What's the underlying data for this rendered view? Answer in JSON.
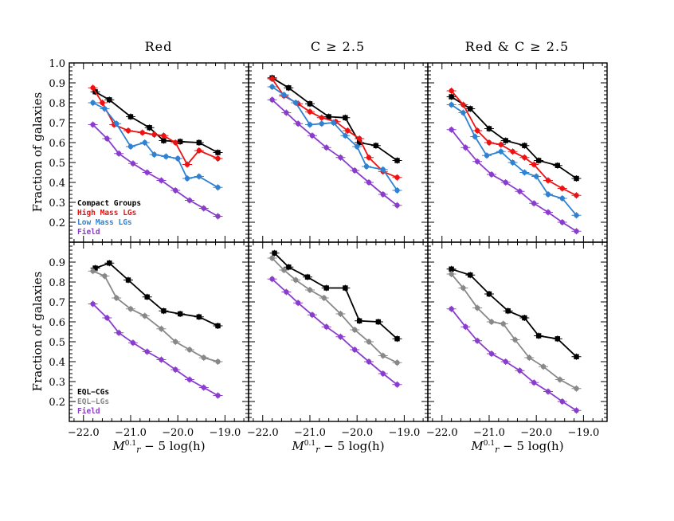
{
  "figure": {
    "column_titles": [
      "Red",
      "C ≥ 2.5",
      "Red & C ≥ 2.5"
    ],
    "ylabel": "Fraction of galaxies",
    "xlabel_parts": {
      "m": "M",
      "sup": "0.1",
      "sub": "r",
      "rest": " − 5 log(h)"
    }
  },
  "chart_data": [
    {
      "type": "line",
      "panel": "top-left",
      "title": "Red",
      "xlim": [
        -22.3,
        -18.5
      ],
      "ylim": [
        0.1,
        1.0
      ],
      "xticks": [
        "−22.0",
        "−21.0",
        "−20.0",
        "−19.0"
      ],
      "yticks": [
        "0.2",
        "0.3",
        "0.4",
        "0.5",
        "0.6",
        "0.7",
        "0.8",
        "0.9",
        "1.0"
      ],
      "ylabel": "Fraction of galaxies",
      "xlabel": "",
      "legend": {
        "placement": "bottom-left"
      },
      "series": [
        {
          "name": "Compact Groups",
          "color": "#000000",
          "x": [
            -21.75,
            -21.45,
            -21.0,
            -20.6,
            -20.3,
            -19.95,
            -19.55,
            -19.15
          ],
          "y": [
            0.855,
            0.815,
            0.73,
            0.675,
            0.61,
            0.605,
            0.6,
            0.55
          ]
        },
        {
          "name": "High Mass LGs",
          "color": "#ee1111",
          "x": [
            -21.8,
            -21.6,
            -21.35,
            -21.05,
            -20.75,
            -20.5,
            -20.3,
            -20.05,
            -19.8,
            -19.55,
            -19.15
          ],
          "y": [
            0.875,
            0.8,
            0.69,
            0.66,
            0.65,
            0.64,
            0.635,
            0.6,
            0.49,
            0.56,
            0.52
          ]
        },
        {
          "name": "Low Mass LGs",
          "color": "#2f82d2",
          "x": [
            -21.8,
            -21.55,
            -21.3,
            -21.0,
            -20.7,
            -20.5,
            -20.25,
            -20.0,
            -19.8,
            -19.55,
            -19.15
          ],
          "y": [
            0.8,
            0.77,
            0.695,
            0.58,
            0.6,
            0.54,
            0.53,
            0.52,
            0.42,
            0.43,
            0.375
          ]
        },
        {
          "name": "Field",
          "color": "#8a3ccc",
          "x": [
            -21.8,
            -21.5,
            -21.25,
            -20.95,
            -20.65,
            -20.35,
            -20.05,
            -19.75,
            -19.45,
            -19.15
          ],
          "y": [
            0.69,
            0.62,
            0.545,
            0.495,
            0.45,
            0.41,
            0.36,
            0.31,
            0.27,
            0.23
          ]
        }
      ]
    },
    {
      "type": "line",
      "panel": "top-middle",
      "title": "C ≥ 2.5",
      "xlim": [
        -22.3,
        -18.5
      ],
      "ylim": [
        0.1,
        1.0
      ],
      "xticks": [
        "−22.0",
        "−21.0",
        "−20.0",
        "−19.0"
      ],
      "yticks": [],
      "series": [
        {
          "name": "Compact Groups",
          "color": "#000000",
          "x": [
            -21.8,
            -21.45,
            -21.0,
            -20.6,
            -20.25,
            -19.95,
            -19.6,
            -19.15
          ],
          "y": [
            0.925,
            0.875,
            0.795,
            0.73,
            0.725,
            0.6,
            0.585,
            0.51
          ]
        },
        {
          "name": "High Mass LGs",
          "color": "#ee1111",
          "x": [
            -21.8,
            -21.55,
            -21.25,
            -21.0,
            -20.75,
            -20.45,
            -20.2,
            -19.95,
            -19.75,
            -19.45,
            -19.15
          ],
          "y": [
            0.92,
            0.835,
            0.795,
            0.755,
            0.725,
            0.705,
            0.66,
            0.62,
            0.525,
            0.455,
            0.425
          ]
        },
        {
          "name": "Low Mass LGs",
          "color": "#2f82d2",
          "x": [
            -21.8,
            -21.55,
            -21.3,
            -21.0,
            -20.75,
            -20.5,
            -20.25,
            -20.0,
            -19.8,
            -19.45,
            -19.15
          ],
          "y": [
            0.88,
            0.84,
            0.8,
            0.69,
            0.695,
            0.7,
            0.635,
            0.58,
            0.48,
            0.465,
            0.36
          ]
        },
        {
          "name": "Field",
          "color": "#8a3ccc",
          "x": [
            -21.8,
            -21.5,
            -21.25,
            -20.95,
            -20.65,
            -20.35,
            -20.05,
            -19.75,
            -19.45,
            -19.15
          ],
          "y": [
            0.815,
            0.75,
            0.695,
            0.635,
            0.575,
            0.525,
            0.46,
            0.4,
            0.34,
            0.285
          ]
        }
      ]
    },
    {
      "type": "line",
      "panel": "top-right",
      "title": "Red & C ≥ 2.5",
      "xlim": [
        -22.3,
        -18.5
      ],
      "ylim": [
        0.1,
        1.0
      ],
      "xticks": [
        "−22.0",
        "−21.0",
        "−20.0",
        "−19.0"
      ],
      "yticks": [],
      "series": [
        {
          "name": "Compact Groups",
          "color": "#000000",
          "x": [
            -21.8,
            -21.4,
            -21.0,
            -20.65,
            -20.25,
            -19.95,
            -19.55,
            -19.15
          ],
          "y": [
            0.83,
            0.77,
            0.67,
            0.61,
            0.585,
            0.51,
            0.485,
            0.42
          ]
        },
        {
          "name": "High Mass LGs",
          "color": "#ee1111",
          "x": [
            -21.8,
            -21.55,
            -21.25,
            -21.0,
            -20.75,
            -20.5,
            -20.25,
            -20.05,
            -19.75,
            -19.45,
            -19.15
          ],
          "y": [
            0.86,
            0.79,
            0.66,
            0.6,
            0.59,
            0.555,
            0.525,
            0.49,
            0.41,
            0.37,
            0.335
          ]
        },
        {
          "name": "Low Mass LGs",
          "color": "#2f82d2",
          "x": [
            -21.8,
            -21.55,
            -21.3,
            -21.05,
            -20.75,
            -20.5,
            -20.25,
            -20.0,
            -19.75,
            -19.45,
            -19.15
          ],
          "y": [
            0.79,
            0.75,
            0.63,
            0.535,
            0.555,
            0.5,
            0.45,
            0.43,
            0.34,
            0.32,
            0.235
          ]
        },
        {
          "name": "Field",
          "color": "#8a3ccc",
          "x": [
            -21.8,
            -21.5,
            -21.25,
            -20.95,
            -20.65,
            -20.35,
            -20.05,
            -19.75,
            -19.45,
            -19.15
          ],
          "y": [
            0.665,
            0.575,
            0.505,
            0.44,
            0.4,
            0.355,
            0.295,
            0.25,
            0.2,
            0.155
          ]
        }
      ]
    },
    {
      "type": "line",
      "panel": "bottom-left",
      "xlim": [
        -22.3,
        -18.5
      ],
      "ylim": [
        0.1,
        1.0
      ],
      "xticks": [
        "−22.0",
        "−21.0",
        "−20.0",
        "−19.0"
      ],
      "yticks": [
        "0.2",
        "0.3",
        "0.4",
        "0.5",
        "0.6",
        "0.7",
        "0.8",
        "0.9"
      ],
      "ylabel": "Fraction of galaxies",
      "xlabel": "M0.1r − 5 log(h)",
      "legend": {
        "placement": "bottom-left"
      },
      "series": [
        {
          "name": "EQL−CGs",
          "color": "#000000",
          "x": [
            -21.75,
            -21.45,
            -21.05,
            -20.65,
            -20.3,
            -19.95,
            -19.55,
            -19.15
          ],
          "y": [
            0.87,
            0.895,
            0.81,
            0.725,
            0.655,
            0.64,
            0.625,
            0.58
          ]
        },
        {
          "name": "EQL−LGs",
          "color": "#888888",
          "x": [
            -21.8,
            -21.55,
            -21.3,
            -21.0,
            -20.7,
            -20.35,
            -20.05,
            -19.75,
            -19.45,
            -19.15
          ],
          "y": [
            0.855,
            0.83,
            0.72,
            0.665,
            0.63,
            0.565,
            0.5,
            0.46,
            0.42,
            0.4
          ]
        },
        {
          "name": "Field",
          "color": "#8a3ccc",
          "x": [
            -21.8,
            -21.5,
            -21.25,
            -20.95,
            -20.65,
            -20.35,
            -20.05,
            -19.75,
            -19.45,
            -19.15
          ],
          "y": [
            0.69,
            0.62,
            0.545,
            0.495,
            0.45,
            0.41,
            0.36,
            0.31,
            0.27,
            0.23
          ]
        }
      ]
    },
    {
      "type": "line",
      "panel": "bottom-middle",
      "xlim": [
        -22.3,
        -18.5
      ],
      "ylim": [
        0.1,
        1.0
      ],
      "xticks": [
        "−22.0",
        "−21.0",
        "−20.0",
        "−19.0"
      ],
      "yticks": [],
      "xlabel": "M0.1r − 5 log(h)",
      "series": [
        {
          "name": "EQL−CGs",
          "color": "#000000",
          "x": [
            -21.75,
            -21.45,
            -21.05,
            -20.65,
            -20.25,
            -19.95,
            -19.55,
            -19.15
          ],
          "y": [
            0.945,
            0.875,
            0.825,
            0.77,
            0.77,
            0.605,
            0.6,
            0.515
          ]
        },
        {
          "name": "EQL−LGs",
          "color": "#888888",
          "x": [
            -21.8,
            -21.55,
            -21.3,
            -21.0,
            -20.7,
            -20.35,
            -20.05,
            -19.75,
            -19.45,
            -19.15
          ],
          "y": [
            0.92,
            0.86,
            0.81,
            0.76,
            0.72,
            0.64,
            0.56,
            0.5,
            0.43,
            0.395
          ]
        },
        {
          "name": "Field",
          "color": "#8a3ccc",
          "x": [
            -21.8,
            -21.5,
            -21.25,
            -20.95,
            -20.65,
            -20.35,
            -20.05,
            -19.75,
            -19.45,
            -19.15
          ],
          "y": [
            0.815,
            0.75,
            0.695,
            0.635,
            0.575,
            0.525,
            0.46,
            0.4,
            0.34,
            0.285
          ]
        }
      ]
    },
    {
      "type": "line",
      "panel": "bottom-right",
      "xlim": [
        -22.3,
        -18.5
      ],
      "ylim": [
        0.1,
        1.0
      ],
      "xticks": [
        "−22.0",
        "−21.0",
        "−20.0",
        "−19.0"
      ],
      "yticks": [],
      "xlabel": "M0.1r − 5 log(h)",
      "series": [
        {
          "name": "EQL−CGs",
          "color": "#000000",
          "x": [
            -21.8,
            -21.4,
            -21.0,
            -20.6,
            -20.25,
            -19.95,
            -19.55,
            -19.15
          ],
          "y": [
            0.865,
            0.835,
            0.74,
            0.655,
            0.62,
            0.53,
            0.515,
            0.425
          ]
        },
        {
          "name": "EQL−LGs",
          "color": "#888888",
          "x": [
            -21.8,
            -21.55,
            -21.25,
            -20.95,
            -20.7,
            -20.45,
            -20.15,
            -19.85,
            -19.5,
            -19.15
          ],
          "y": [
            0.84,
            0.77,
            0.67,
            0.6,
            0.59,
            0.51,
            0.42,
            0.375,
            0.31,
            0.265
          ]
        },
        {
          "name": "Field",
          "color": "#8a3ccc",
          "x": [
            -21.8,
            -21.5,
            -21.25,
            -20.95,
            -20.65,
            -20.35,
            -20.05,
            -19.75,
            -19.45,
            -19.15
          ],
          "y": [
            0.665,
            0.575,
            0.505,
            0.44,
            0.4,
            0.355,
            0.295,
            0.25,
            0.2,
            0.155
          ]
        }
      ]
    }
  ]
}
